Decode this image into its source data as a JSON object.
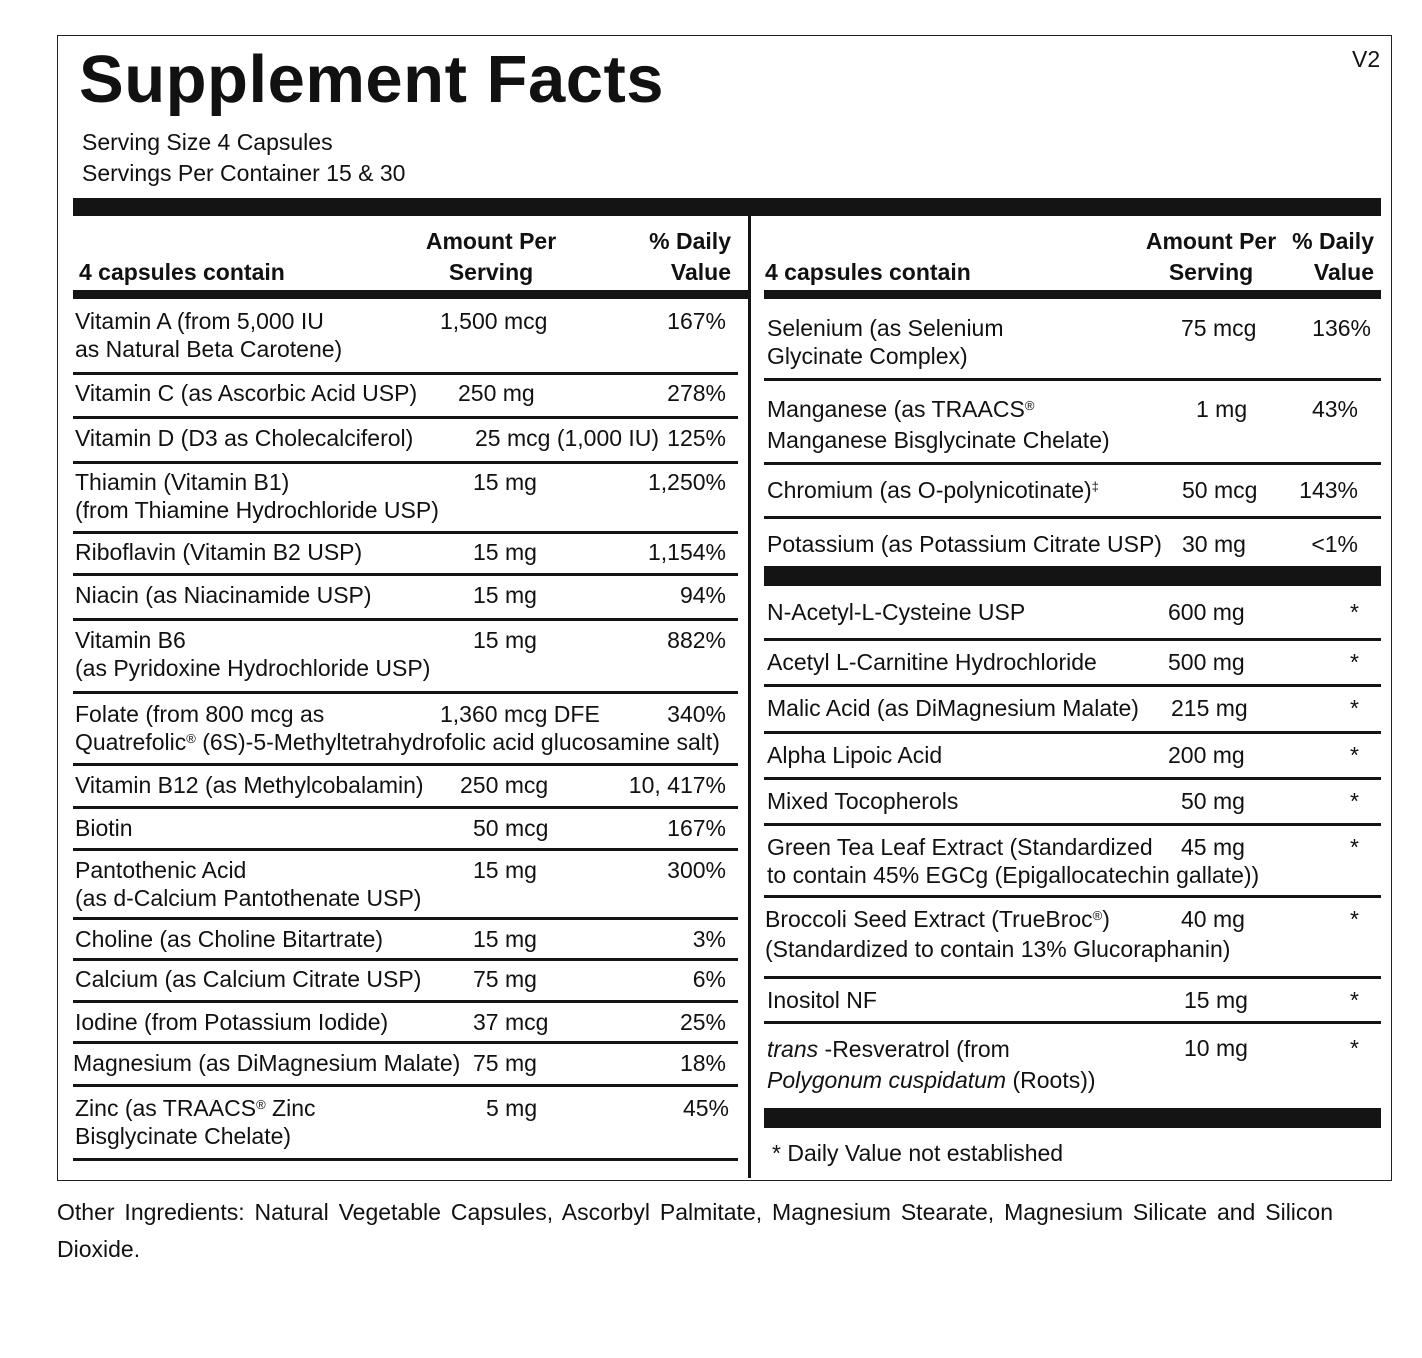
{
  "title": "Supplement Facts",
  "version": "V2",
  "serving_size": "Serving Size  4 Capsules",
  "servings_per_container": "Servings Per Container  15 & 30",
  "left_table": {
    "header": {
      "contain": "4 capsules contain",
      "amount_1": "Amount Per",
      "amount_2": "Serving",
      "dv_1": "% Daily",
      "dv_2": "Value"
    },
    "rows": [
      {
        "name1": "Vitamin A (from 5,000 IU",
        "name2": "as Natural Beta Carotene)",
        "amount": "1,500 mcg",
        "dv": "167%"
      },
      {
        "name1": "Vitamin C (as Ascorbic Acid USP)",
        "amount": "250 mg",
        "dv": "278%"
      },
      {
        "name1": "Vitamin D (D3 as Cholecalciferol)",
        "amount": "25 mcg (1,000 IU)",
        "dv": "125%"
      },
      {
        "name1": "Thiamin (Vitamin B1)",
        "name2": "(from Thiamine Hydrochloride USP)",
        "amount": "15 mg",
        "dv": "1,250%"
      },
      {
        "name1": "Riboflavin (Vitamin B2 USP)",
        "amount": "15 mg",
        "dv": "1,154%"
      },
      {
        "name1": "Niacin (as Niacinamide USP)",
        "amount": "15 mg",
        "dv": "94%"
      },
      {
        "name1": "Vitamin B6",
        "name2": "(as Pyridoxine Hydrochloride USP)",
        "amount": "15 mg",
        "dv": "882%"
      },
      {
        "name1": "Folate (from 800 mcg as",
        "name2_a": "Quatrefolic",
        "name2_sup": "®",
        "name2_b": " (6S)-5-Methyltetrahydrofolic acid glucosamine salt)",
        "amount": "1,360 mcg DFE",
        "dv": "340%"
      },
      {
        "name1": "Vitamin B12 (as Methylcobalamin)",
        "amount": "250 mcg",
        "dv": "10, 417%"
      },
      {
        "name1": "Biotin",
        "amount": "50 mcg",
        "dv": "167%"
      },
      {
        "name1": "Pantothenic Acid",
        "name2": "(as d-Calcium Pantothenate USP)",
        "amount": "15 mg",
        "dv": "300%"
      },
      {
        "name1": "Choline (as Choline Bitartrate)",
        "amount": "15 mg",
        "dv": "3%"
      },
      {
        "name1": "Calcium (as Calcium Citrate USP)",
        "amount": "75 mg",
        "dv": "6%"
      },
      {
        "name1": "Iodine (from Potassium Iodide)",
        "amount": "37 mcg",
        "dv": "25%"
      },
      {
        "name1": "Magnesium (as DiMagnesium Malate)",
        "amount": "75 mg",
        "dv": "18%"
      },
      {
        "name1_a": "Zinc (as TRAACS",
        "name1_sup": "®",
        "name1_b": " Zinc",
        "name2": "Bisglycinate Chelate)",
        "amount": "5 mg",
        "dv": "45%"
      }
    ]
  },
  "right_table": {
    "header": {
      "contain": "4 capsules contain",
      "amount_1": "Amount Per",
      "amount_2": "Serving",
      "dv_1": "% Daily",
      "dv_2": "Value"
    },
    "minerals": [
      {
        "name1": "Selenium (as Selenium",
        "name2": "Glycinate Complex)",
        "amount": "75 mcg",
        "dv": "136%"
      },
      {
        "name1_a": "Manganese (as TRAACS",
        "name1_sup": "®",
        "name2": "Manganese Bisglycinate Chelate)",
        "amount": "1 mg",
        "dv": "43%"
      },
      {
        "name1_a": "Chromium (as O-polynicotinate)",
        "name1_sup": "‡",
        "amount": "50 mcg",
        "dv": "143%"
      },
      {
        "name1": "Potassium (as Potassium Citrate USP)",
        "amount": "30 mg",
        "dv": "<1%"
      }
    ],
    "others": [
      {
        "name1": "N-Acetyl-L-Cysteine USP",
        "amount": "600 mg",
        "dv": "*"
      },
      {
        "name1": "Acetyl L-Carnitine Hydrochloride",
        "amount": "500 mg",
        "dv": "*"
      },
      {
        "name1": "Malic Acid (as DiMagnesium Malate)",
        "amount": "215 mg",
        "dv": "*"
      },
      {
        "name1": "Alpha Lipoic Acid",
        "amount": "200 mg",
        "dv": "*"
      },
      {
        "name1": "Mixed Tocopherols",
        "amount": "50 mg",
        "dv": "*"
      },
      {
        "name1": "Green Tea Leaf Extract  (Standardized",
        "name2": "to contain 45% EGCg (Epigallocatechin gallate))",
        "amount": "45 mg",
        "dv": "*"
      },
      {
        "name1_a": "Broccoli Seed Extract (TrueBroc",
        "name1_sup": "®",
        "name1_b": ")",
        "name2": "(Standardized to contain 13% Glucoraphanin)",
        "amount": "40 mg",
        "dv": "*"
      },
      {
        "name1": "Inositol NF",
        "amount": "15 mg",
        "dv": "*"
      },
      {
        "name1_i": "trans",
        "name1_b": " -Resveratrol (from",
        "name2_i": "Polygonum cuspidatum",
        "name2_b": " (Roots))",
        "amount": "10 mg",
        "dv": "*"
      }
    ]
  },
  "footnote": "*  Daily Value not established",
  "other_ingredients": "Other Ingredients: Natural Vegetable Capsules, Ascorbyl Palmitate, Magnesium Stearate, Magnesium Silicate and Silicon Dioxide."
}
